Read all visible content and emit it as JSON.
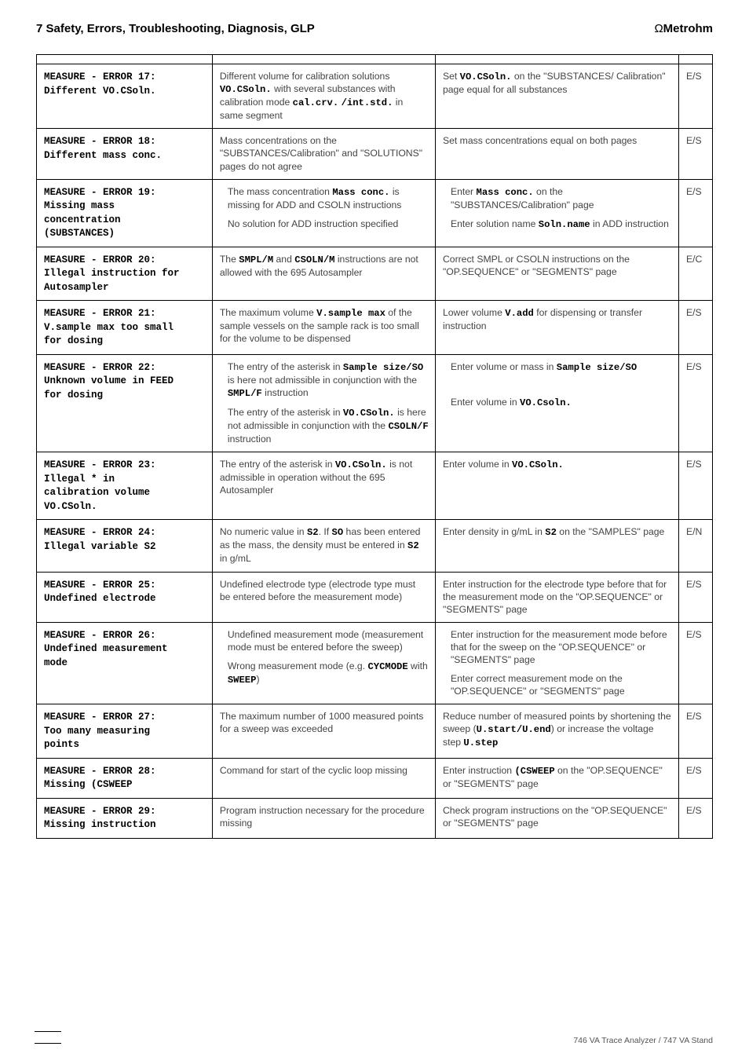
{
  "header": {
    "title": "7  Safety, Errors, Troubleshooting, Diagnosis, GLP",
    "brand_symbol": "Ω",
    "brand_name": "Metrohm"
  },
  "footer": "746 VA Trace Analyzer / 747 VA Stand",
  "rows": [
    {
      "code_lines": [
        "MEASURE - ERROR 17:",
        "Different VO.CSoln."
      ],
      "cause_html": "Different volume for calibration solutions <span class='inline-mono'>VO.CSoln.</span> with several substances with calibration mode <span class='inline-mono'>cal.crv.</span> <span class='inline-mono'>/int.std.</span> in same segment",
      "remedy_html": "Set <span class='inline-mono'>VO.CSoln.</span> on the \"SUBSTANCES/ Calibration\" page equal for all substances",
      "sev": "E/S"
    },
    {
      "code_lines": [
        "MEASURE - ERROR 18:",
        "Different mass conc."
      ],
      "cause_html": "Mass concentrations on the \"SUBSTANCES/Calibration\" and \"SOLUTIONS\" pages do not agree",
      "remedy_html": "Set mass concentrations equal on both pages",
      "sev": "E/S"
    },
    {
      "code_lines": [
        "MEASURE - ERROR 19:",
        "Missing mass",
        "concentration",
        "(SUBSTANCES)"
      ],
      "cause_html": "<div class='indent-block'>The mass concentration <span class='inline-mono'>Mass conc.</span> is missing for ADD and CSOLN instructions</div><div class='indent-block sub'>No solution for ADD instruction specified</div>",
      "remedy_html": "<div class='indent-block'>Enter <span class='inline-mono'>Mass conc.</span> on the \"SUBSTANCES/Calibration\" page</div><div class='indent-block sub'>Enter solution name <span class='inline-mono'>Soln.name</span> in ADD instruction</div>",
      "sev": "E/S"
    },
    {
      "code_lines": [
        "MEASURE - ERROR 20:",
        "Illegal instruction for",
        "Autosampler"
      ],
      "cause_html": "The <span class='inline-mono'>SMPL/M</span> and <span class='inline-mono'>CSOLN/M</span> instructions are not allowed with the 695 Autosampler",
      "remedy_html": "Correct SMPL or CSOLN instructions on the \"OP.SEQUENCE\" or \"SEGMENTS\" page",
      "sev": "E/C"
    },
    {
      "code_lines": [
        "MEASURE - ERROR 21:",
        "V.sample max too small",
        "for dosing"
      ],
      "cause_html": "The maximum volume <span class='inline-mono'>V.sample max</span> of the sample vessels on the sample rack is too small for the volume to be dispensed",
      "remedy_html": "Lower volume <span class='inline-mono'>V.add</span> for dispensing or transfer instruction",
      "sev": "E/S"
    },
    {
      "code_lines": [
        "MEASURE - ERROR 22:",
        "Unknown volume in FEED",
        "for dosing"
      ],
      "cause_html": "<div class='indent-block'>The entry of the asterisk in <span class='inline-mono'>Sample size/SO</span> is here not admissible in conjunction with the <span class='inline-mono'>SMPL/F</span> instruction</div><div class='indent-block sub'>The entry of the asterisk in <span class='inline-mono'>VO.CSoln.</span> is here not admissible in conjunction with the <span class='inline-mono'>CSOLN/F</span> instruction</div>",
      "remedy_html": "<div class='indent-block'>Enter volume or mass in <span class='inline-mono'>Sample size/SO</span></div><div class='indent-block sub' style='margin-top:28px'>Enter volume in <span class='inline-mono'>VO.Csoln.</span></div>",
      "sev": "E/S"
    },
    {
      "code_lines": [
        "MEASURE - ERROR 23:",
        "Illegal * in",
        "calibration volume",
        "VO.CSoln."
      ],
      "cause_html": "The entry of the asterisk in <span class='inline-mono'>VO.CSoln.</span> is not admissible in operation without the 695 Autosampler",
      "remedy_html": "Enter volume in <span class='inline-mono'>VO.CSoln.</span>",
      "sev": "E/S"
    },
    {
      "code_lines": [
        "MEASURE - ERROR 24:",
        "Illegal variable S2"
      ],
      "cause_html": "No numeric value in <span class='inline-mono'>S2</span>. If <span class='inline-mono'>SO</span> has been entered as the mass, the density must be entered in <span class='inline-mono'>S2</span> in g/mL",
      "remedy_html": "Enter density in g/mL in <span class='inline-mono'>S2</span> on the \"SAMPLES\" page",
      "sev": "E/N"
    },
    {
      "code_lines": [
        "MEASURE - ERROR 25:",
        "Undefined electrode"
      ],
      "cause_html": "Undefined electrode type (electrode type must be entered before the measurement mode)",
      "remedy_html": "Enter instruction for the electrode type before that for the measurement mode on the \"OP.SEQUENCE\" or \"SEGMENTS\" page",
      "sev": "E/S"
    },
    {
      "code_lines": [
        "MEASURE - ERROR 26:",
        "Undefined measurement",
        "mode"
      ],
      "cause_html": "<div class='indent-block'>Undefined measurement mode (measurement mode must be entered before the sweep)</div><div class='indent-block sub'>Wrong measurement mode (e.g. <span class='inline-mono'>CYCMODE</span> with <span class='inline-mono'>SWEEP</span>)</div>",
      "remedy_html": "<div class='indent-block'>Enter instruction for the measurement mode before that for the sweep on the \"OP.SEQUENCE\" or \"SEGMENTS\" page</div><div class='indent-block sub'>Enter correct measurement mode on the \"OP.SEQUENCE\" or \"SEGMENTS\" page</div>",
      "sev": "E/S"
    },
    {
      "code_lines": [
        "MEASURE - ERROR 27:",
        "Too many measuring",
        "points"
      ],
      "cause_html": "The maximum number of 1000 measured points for a sweep was exceeded",
      "remedy_html": "Reduce number of measured points by shortening the sweep (<span class='inline-mono'>U.start/U.end</span>) or increase the voltage step <span class='inline-mono'>U.step</span>",
      "sev": "E/S"
    },
    {
      "code_lines": [
        "MEASURE - ERROR 28:",
        "Missing (CSWEEP"
      ],
      "cause_html": "Command for start of the cyclic loop missing",
      "remedy_html": "Enter instruction <span class='inline-mono'>(CSWEEP</span> on the \"OP.SEQUENCE\" or \"SEGMENTS\" page",
      "sev": "E/S"
    },
    {
      "code_lines": [
        "MEASURE - ERROR 29:",
        "Missing instruction"
      ],
      "cause_html": "Program instruction necessary for the procedure missing",
      "remedy_html": "Check program instructions on the \"OP.SEQUENCE\" or \"SEGMENTS\" page",
      "sev": "E/S"
    }
  ]
}
